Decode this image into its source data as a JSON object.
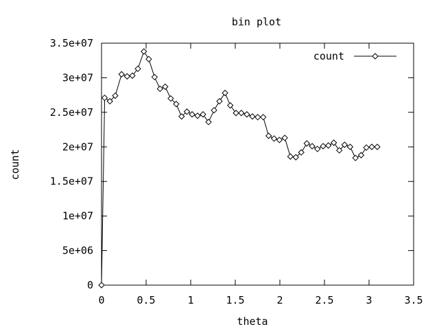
{
  "chart_data": {
    "type": "line",
    "title": "bin plot",
    "xlabel": "theta",
    "ylabel": "count",
    "xlim": [
      0,
      3.5
    ],
    "ylim": [
      0,
      35000000
    ],
    "xticks": [
      0,
      0.5,
      1,
      1.5,
      2,
      2.5,
      3,
      3.5
    ],
    "xtick_labels": [
      "0",
      "0.5",
      "1",
      "1.5",
      "2",
      "2.5",
      "3",
      "3.5"
    ],
    "yticks": [
      0,
      5000000,
      10000000,
      15000000,
      20000000,
      25000000,
      30000000,
      35000000
    ],
    "ytick_labels": [
      "0",
      "5e+06",
      "1e+07",
      "1.5e+07",
      "2e+07",
      "2.5e+07",
      "3e+07",
      "3.5e+07"
    ],
    "grid": false,
    "legend_position": "top-right",
    "series": [
      {
        "name": "count",
        "marker": "diamond",
        "x": [
          0,
          0.035,
          0.094,
          0.154,
          0.225,
          0.287,
          0.346,
          0.408,
          0.475,
          0.53,
          0.595,
          0.656,
          0.714,
          0.776,
          0.838,
          0.898,
          0.958,
          1.016,
          1.077,
          1.138,
          1.2,
          1.262,
          1.323,
          1.385,
          1.444,
          1.508,
          1.568,
          1.63,
          1.692,
          1.752,
          1.813,
          1.874,
          1.935,
          1.995,
          2.055,
          2.118,
          2.179,
          2.24,
          2.302,
          2.362,
          2.421,
          2.485,
          2.544,
          2.605,
          2.667,
          2.726,
          2.788,
          2.848,
          2.911,
          2.97,
          3.031,
          3.092
        ],
        "y": [
          0,
          27100000,
          26600000,
          27400000,
          30500000,
          30200000,
          30300000,
          31300000,
          33800000,
          32700000,
          30100000,
          28400000,
          28700000,
          27000000,
          26200000,
          24400000,
          25100000,
          24700000,
          24500000,
          24700000,
          23600000,
          25300000,
          26600000,
          27800000,
          26000000,
          24900000,
          24900000,
          24700000,
          24400000,
          24300000,
          24300000,
          21600000,
          21200000,
          21000000,
          21300000,
          18600000,
          18500000,
          19200000,
          20500000,
          20100000,
          19700000,
          20100000,
          20200000,
          20600000,
          19500000,
          20300000,
          20000000,
          18400000,
          18800000,
          19900000,
          20000000,
          20000000
        ]
      }
    ]
  }
}
